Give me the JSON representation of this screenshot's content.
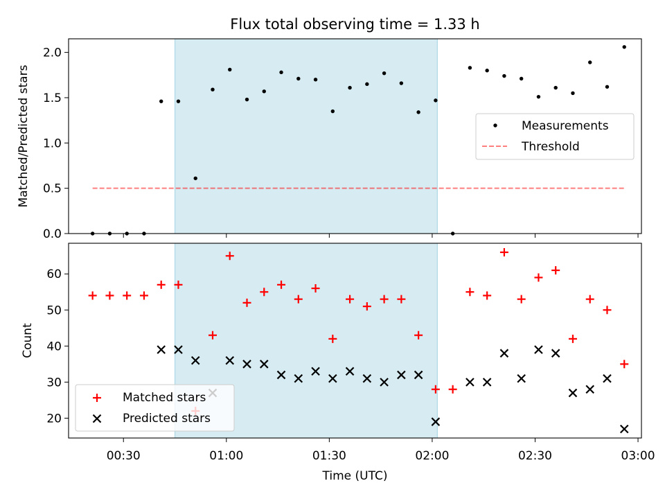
{
  "figure": {
    "title": "Flux total observing time = 1.33 h",
    "colors": {
      "window_fill": "#add8e6",
      "measurement": "#000000",
      "threshold": "#ff0000",
      "matched": "#ff0000",
      "predicted": "#000000"
    }
  },
  "chart_data": [
    {
      "type": "scatter",
      "title": "Flux total observing time = 1.33 h",
      "xlabel": "",
      "ylabel": "Matched/Predicted stars",
      "xlim": [
        "00:14:00",
        "03:01:00"
      ],
      "ylim": [
        0,
        2.15
      ],
      "yticks": [
        "0.0",
        "0.5",
        "1.0",
        "1.5",
        "2.0"
      ],
      "legend_position": "center-right",
      "grid": false,
      "shaded_interval": [
        "00:45:00",
        "02:01:30"
      ],
      "x": [
        "00:21",
        "00:26",
        "00:31",
        "00:36",
        "00:41",
        "00:46",
        "00:51",
        "00:56",
        "01:01",
        "01:06",
        "01:11",
        "01:16",
        "01:21",
        "01:26",
        "01:31",
        "01:36",
        "01:41",
        "01:46",
        "01:51",
        "01:56",
        "02:01",
        "02:06",
        "02:11",
        "02:16",
        "02:21",
        "02:26",
        "02:31",
        "02:36",
        "02:41",
        "02:46",
        "02:51",
        "02:56"
      ],
      "series": [
        {
          "name": "Measurements",
          "marker": "dot",
          "values": [
            0,
            0,
            0,
            0,
            1.46,
            1.46,
            0.61,
            1.59,
            1.81,
            1.48,
            1.57,
            1.78,
            1.71,
            1.7,
            1.35,
            1.61,
            1.65,
            1.77,
            1.66,
            1.34,
            1.47,
            0.0,
            1.83,
            1.8,
            1.74,
            1.71,
            1.51,
            1.61,
            1.55,
            1.89,
            1.62,
            2.06
          ]
        },
        {
          "name": "Threshold",
          "marker": "dashed-line",
          "x": [
            "00:21",
            "02:56"
          ],
          "values": [
            0.5,
            0.5
          ]
        }
      ]
    },
    {
      "type": "scatter",
      "xlabel": "Time (UTC)",
      "ylabel": "Count",
      "xlim": [
        "00:14:00",
        "03:01:00"
      ],
      "ylim": [
        14.5,
        68.5
      ],
      "yticks": [
        "20",
        "30",
        "40",
        "50",
        "60"
      ],
      "xticks": [
        "00:30",
        "01:00",
        "01:30",
        "02:00",
        "02:30",
        "03:00"
      ],
      "legend_position": "lower-left",
      "grid": false,
      "shaded_interval": [
        "00:45:00",
        "02:01:30"
      ],
      "x": [
        "00:21",
        "00:26",
        "00:31",
        "00:36",
        "00:41",
        "00:46",
        "00:51",
        "00:56",
        "01:01",
        "01:06",
        "01:11",
        "01:16",
        "01:21",
        "01:26",
        "01:31",
        "01:36",
        "01:41",
        "01:46",
        "01:51",
        "01:56",
        "02:01",
        "02:06",
        "02:11",
        "02:16",
        "02:21",
        "02:26",
        "02:31",
        "02:36",
        "02:41",
        "02:46",
        "02:51",
        "02:56"
      ],
      "series": [
        {
          "name": "Matched stars",
          "marker": "plus",
          "values": [
            54,
            54,
            54,
            54,
            57,
            57,
            22,
            43,
            65,
            52,
            55,
            57,
            53,
            56,
            42,
            53,
            51,
            53,
            53,
            43,
            28,
            28,
            55,
            54,
            66,
            53,
            59,
            61,
            42,
            53,
            50,
            35
          ]
        },
        {
          "name": "Predicted stars",
          "marker": "x",
          "values": [
            null,
            null,
            null,
            null,
            39,
            39,
            36,
            27,
            36,
            35,
            35,
            32,
            31,
            33,
            31,
            33,
            31,
            30,
            32,
            32,
            19,
            null,
            30,
            30,
            38,
            31,
            39,
            38,
            27,
            28,
            31,
            17
          ]
        }
      ]
    }
  ]
}
